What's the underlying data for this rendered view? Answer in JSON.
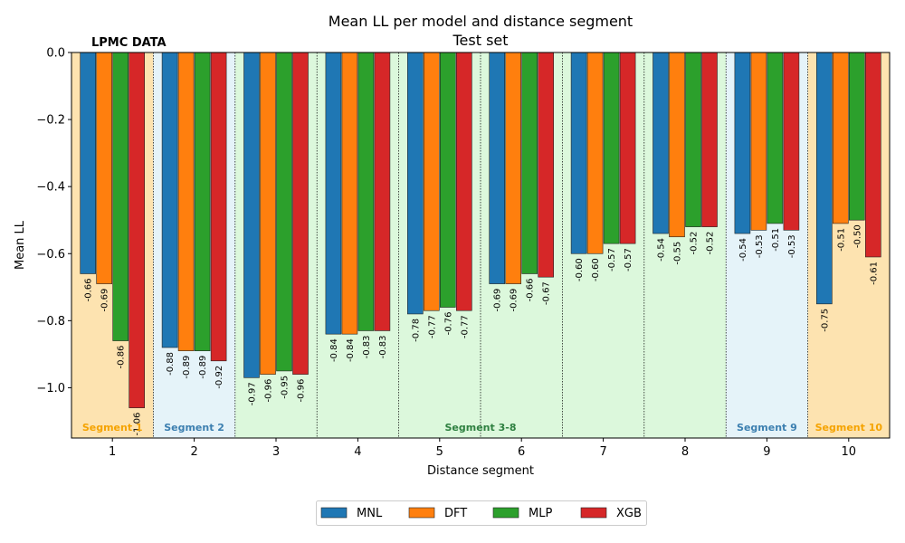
{
  "chart_data": {
    "type": "bar",
    "title": "Mean LL per model and distance segment",
    "subtitle": "Test set",
    "xlabel": "Distance segment",
    "ylabel": "Mean LL",
    "ylim": [
      -1.15,
      0.0
    ],
    "yticks": [
      0.0,
      -0.2,
      -0.4,
      -0.6,
      -0.8,
      -1.0
    ],
    "ytick_labels": [
      "0.0",
      "−0.2",
      "−0.4",
      "−0.6",
      "−0.8",
      "−1.0"
    ],
    "categories": [
      "1",
      "2",
      "3",
      "4",
      "5",
      "6",
      "7",
      "8",
      "9",
      "10"
    ],
    "annotation": "LPMC DATA",
    "series": [
      {
        "name": "MNL",
        "color": "#1f77b4",
        "values": [
          -0.66,
          -0.88,
          -0.97,
          -0.84,
          -0.78,
          -0.69,
          -0.6,
          -0.54,
          -0.54,
          -0.75
        ],
        "labels": [
          "-0.66",
          "-0.88",
          "-0.97",
          "-0.84",
          "-0.78",
          "-0.69",
          "-0.60",
          "-0.54",
          "-0.54",
          "-0.75"
        ]
      },
      {
        "name": "DFT",
        "color": "#ff7f0e",
        "values": [
          -0.69,
          -0.89,
          -0.96,
          -0.84,
          -0.77,
          -0.69,
          -0.6,
          -0.55,
          -0.53,
          -0.51
        ],
        "labels": [
          "-0.69",
          "-0.89",
          "-0.96",
          "-0.84",
          "-0.77",
          "-0.69",
          "-0.60",
          "-0.55",
          "-0.53",
          "-0.51"
        ]
      },
      {
        "name": "MLP",
        "color": "#2ca02c",
        "values": [
          -0.86,
          -0.89,
          -0.95,
          -0.83,
          -0.76,
          -0.66,
          -0.57,
          -0.52,
          -0.51,
          -0.5
        ],
        "labels": [
          "-0.86",
          "-0.89",
          "-0.95",
          "-0.83",
          "-0.76",
          "-0.66",
          "-0.57",
          "-0.52",
          "-0.51",
          "-0.50"
        ]
      },
      {
        "name": "XGB",
        "color": "#d62728",
        "values": [
          -1.06,
          -0.92,
          -0.96,
          -0.83,
          -0.77,
          -0.67,
          -0.57,
          -0.52,
          -0.53,
          -0.61
        ],
        "labels": [
          "-1.06",
          "-0.92",
          "-0.96",
          "-0.83",
          "-0.77",
          "-0.67",
          "-0.57",
          "-0.52",
          "-0.53",
          "-0.61"
        ]
      }
    ],
    "segment_groups": [
      {
        "label": "Segment 1",
        "start": 1,
        "end": 1,
        "bg": "#fde3b0",
        "text_color": "#f5a300"
      },
      {
        "label": "Segment 2",
        "start": 2,
        "end": 2,
        "bg": "#e5f3f9",
        "text_color": "#3c7fb0"
      },
      {
        "label": "Segment 3-8",
        "start": 3,
        "end": 8,
        "bg": "#dcf8dc",
        "text_color": "#2e8040"
      },
      {
        "label": "Segment 9",
        "start": 9,
        "end": 9,
        "bg": "#e5f3f9",
        "text_color": "#3c7fb0"
      },
      {
        "label": "Segment 10",
        "start": 10,
        "end": 10,
        "bg": "#fde3b0",
        "text_color": "#f5a300"
      }
    ],
    "legend_position": "bottom-center",
    "grid": false
  }
}
